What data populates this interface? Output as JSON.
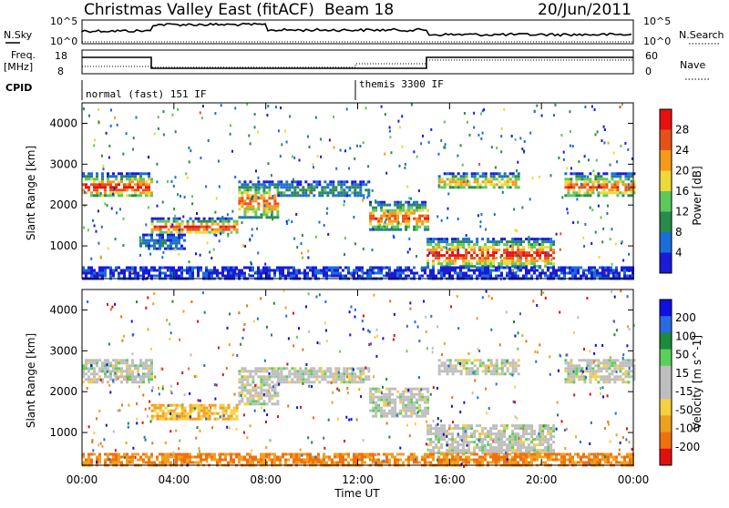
{
  "header": {
    "title": "Christmas Valley East (fitACF)",
    "beam": "Beam 18",
    "date": "20/Jun/2011"
  },
  "param_panels": {
    "nsky": {
      "left_label": "N.Sky",
      "right_label": "N.Search",
      "left_ticks": [
        "10^5",
        "10^0"
      ],
      "right_ticks": [
        "10^5",
        "10^0"
      ]
    },
    "freq": {
      "left_label_line1": "Freq.",
      "left_label_line2": "[MHz]",
      "right_label": "Nave",
      "left_ticks": [
        "18",
        "8"
      ],
      "right_ticks": [
        "60",
        "0"
      ]
    },
    "cpid": {
      "label": "CPID",
      "modes": [
        "normal (fast) 151 IF",
        "themis 3300 IF"
      ]
    }
  },
  "x_axis": {
    "label": "Time UT",
    "ticks": [
      "00:00",
      "04:00",
      "08:00",
      "12:00",
      "16:00",
      "20:00",
      "00:00"
    ]
  },
  "colors": {
    "power": [
      "#1a1ad9",
      "#1a6ed9",
      "#2a8a4a",
      "#5cc85c",
      "#f0d838",
      "#f59a1a",
      "#e8501a",
      "#e81010"
    ],
    "velocity": [
      "#1010e0",
      "#2a6ae0",
      "#1e8a3c",
      "#5ad05a",
      "#bebebe",
      "#bebebe",
      "#f5d040",
      "#f0a020",
      "#f07010",
      "#e01010"
    ]
  },
  "chart_data": [
    {
      "type": "heatmap",
      "title": "",
      "xlabel": "",
      "ylabel": "Slant Range [km]",
      "yticks": [
        "1000",
        "2000",
        "3000",
        "4000"
      ],
      "ylim": [
        200,
        4500
      ],
      "xlim_hours": [
        0,
        24
      ],
      "colorbar": {
        "label": "Power [dB]",
        "ticks": [
          "4",
          "8",
          "12",
          "16",
          "20",
          "24",
          "28"
        ]
      },
      "echo_bands": [
        {
          "hours": [
            0,
            3.0
          ],
          "range_km": [
            2200,
            2800
          ],
          "peak_db": 28
        },
        {
          "hours": [
            2.5,
            4.5
          ],
          "range_km": [
            900,
            1300
          ],
          "peak_db": 8
        },
        {
          "hours": [
            3.0,
            6.8
          ],
          "range_km": [
            1300,
            1700
          ],
          "peak_db": 28
        },
        {
          "hours": [
            6.8,
            8.5
          ],
          "range_km": [
            1700,
            2600
          ],
          "peak_db": 24
        },
        {
          "hours": [
            8.5,
            12.5
          ],
          "range_km": [
            2200,
            2600
          ],
          "peak_db": 12
        },
        {
          "hours": [
            12.5,
            15.0
          ],
          "range_km": [
            1400,
            2100
          ],
          "peak_db": 24
        },
        {
          "hours": [
            15.0,
            20.5
          ],
          "range_km": [
            500,
            1200
          ],
          "peak_db": 28
        },
        {
          "hours": [
            15.5,
            19.0
          ],
          "range_km": [
            2400,
            2800
          ],
          "peak_db": 20
        },
        {
          "hours": [
            21.0,
            24.0
          ],
          "range_km": [
            2200,
            2800
          ],
          "peak_db": 24
        },
        {
          "hours": [
            0,
            24.0
          ],
          "range_km": [
            200,
            500
          ],
          "peak_db": 4
        }
      ]
    },
    {
      "type": "heatmap",
      "title": "",
      "xlabel": "Time UT",
      "ylabel": "Slant Range [km]",
      "yticks": [
        "1000",
        "2000",
        "3000",
        "4000"
      ],
      "ylim": [
        200,
        4500
      ],
      "xlim_hours": [
        0,
        24
      ],
      "colorbar": {
        "label": "Velocity [m s^-1]",
        "ticks": [
          "200",
          "100",
          "50",
          "15",
          "-15",
          "-50",
          "-100",
          "-200"
        ]
      },
      "echo_bands": [
        {
          "hours": [
            0,
            3.0
          ],
          "range_km": [
            2200,
            2800
          ],
          "velocity": 0
        },
        {
          "hours": [
            3.0,
            6.8
          ],
          "range_km": [
            1300,
            1700
          ],
          "velocity": -50
        },
        {
          "hours": [
            6.8,
            8.5
          ],
          "range_km": [
            1700,
            2600
          ],
          "velocity": 0
        },
        {
          "hours": [
            8.5,
            12.5
          ],
          "range_km": [
            2200,
            2600
          ],
          "velocity": 0
        },
        {
          "hours": [
            12.5,
            15.0
          ],
          "range_km": [
            1400,
            2100
          ],
          "velocity": 0
        },
        {
          "hours": [
            15.0,
            20.5
          ],
          "range_km": [
            500,
            1200
          ],
          "velocity": 0
        },
        {
          "hours": [
            15.5,
            19.0
          ],
          "range_km": [
            2400,
            2800
          ],
          "velocity": 0
        },
        {
          "hours": [
            21.0,
            24.0
          ],
          "range_km": [
            2200,
            2800
          ],
          "velocity": 0
        },
        {
          "hours": [
            0,
            24.0
          ],
          "range_km": [
            200,
            500
          ],
          "velocity": -100
        }
      ]
    }
  ]
}
